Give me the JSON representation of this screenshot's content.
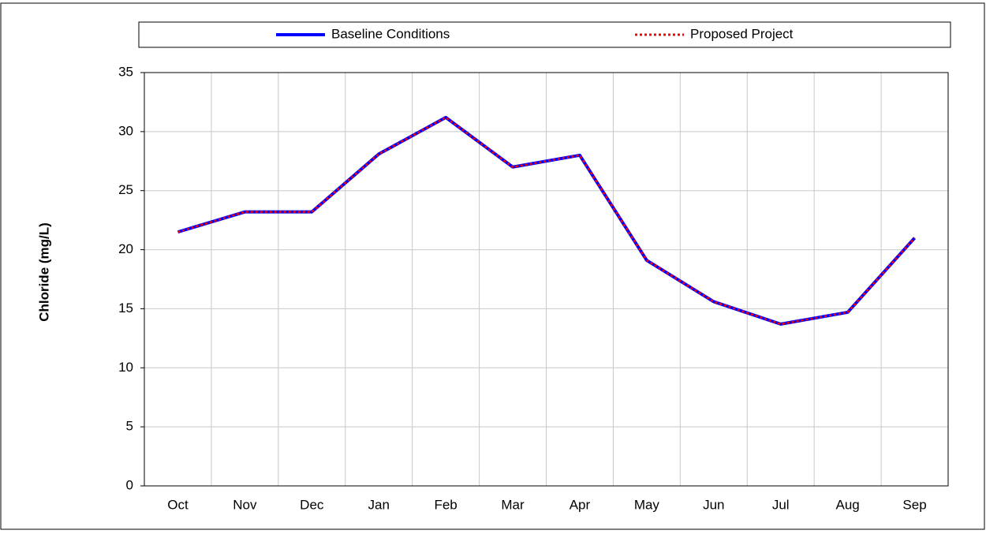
{
  "chart_data": {
    "type": "line",
    "y_label": "Chloride (mg/L)",
    "categories": [
      "Oct",
      "Nov",
      "Dec",
      "Jan",
      "Feb",
      "Mar",
      "Apr",
      "May",
      "Jun",
      "Jul",
      "Aug",
      "Sep"
    ],
    "series": [
      {
        "name": "Baseline Conditions",
        "color": "#0000ff",
        "values": [
          21.5,
          23.2,
          23.2,
          28.1,
          31.2,
          27.0,
          28.0,
          19.1,
          15.6,
          13.7,
          14.7,
          21.0
        ]
      },
      {
        "name": "Proposed Project",
        "color": "#ff0000",
        "dashed": true,
        "values": [
          21.5,
          23.2,
          23.2,
          28.1,
          31.2,
          27.0,
          28.0,
          19.1,
          15.6,
          13.7,
          14.7,
          21.0
        ]
      }
    ],
    "ylim": [
      0,
      35
    ],
    "yticks": [
      0,
      5,
      10,
      15,
      20,
      25,
      30,
      35
    ],
    "grid": true,
    "legend": "top"
  }
}
